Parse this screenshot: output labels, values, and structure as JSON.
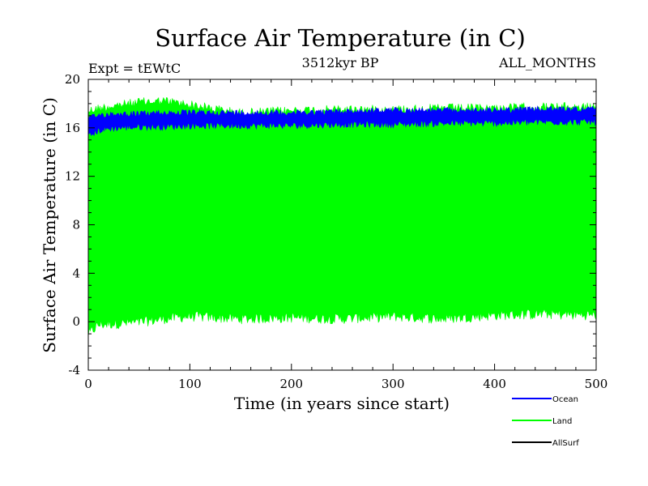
{
  "chart_data": {
    "type": "line",
    "title": "Surface Air Temperature (in C)",
    "subtitle_left": "Expt = tEWtC",
    "subtitle_center": "3512kyr BP",
    "subtitle_right": "ALL_MONTHS",
    "xlabel": "Time (in years since start)",
    "ylabel": "Surface Air Temperature (in C)",
    "xlim": [
      0,
      500
    ],
    "ylim": [
      -4,
      20
    ],
    "xticks": [
      "0",
      "100",
      "200",
      "300",
      "400",
      "500"
    ],
    "yticks": [
      "-4",
      "0",
      "4",
      "8",
      "12",
      "16",
      "20"
    ],
    "grid": false,
    "legend_position": "bottom-right",
    "series": [
      {
        "name": "Ocean",
        "color": "#0000ff",
        "x": [
          0,
          10,
          25,
          50,
          75,
          100,
          150,
          200,
          250,
          300,
          350,
          400,
          450,
          500
        ],
        "upper": [
          17.0,
          17.3,
          17.4,
          17.4,
          17.5,
          17.5,
          17.5,
          17.5,
          17.6,
          17.7,
          17.7,
          17.7,
          17.8,
          17.8
        ],
        "lower": [
          15.0,
          15.5,
          15.7,
          15.8,
          15.8,
          15.9,
          15.9,
          15.9,
          16.0,
          16.0,
          16.1,
          16.1,
          16.2,
          16.2
        ]
      },
      {
        "name": "Land",
        "color": "#00ff00",
        "x": [
          0,
          10,
          25,
          50,
          75,
          100,
          150,
          200,
          250,
          300,
          350,
          400,
          450,
          500
        ],
        "upper": [
          17.8,
          18.0,
          18.2,
          18.5,
          18.6,
          18.3,
          17.6,
          17.8,
          17.9,
          17.9,
          18.0,
          18.0,
          18.1,
          18.1
        ],
        "lower": [
          -1.5,
          -0.7,
          -0.6,
          -0.5,
          -0.2,
          0.0,
          -0.2,
          -0.1,
          -0.2,
          0.0,
          -0.2,
          0.1,
          0.2,
          0.1
        ]
      },
      {
        "name": "AllSurf",
        "color": "#000000",
        "x": [],
        "upper": [],
        "lower": []
      }
    ]
  }
}
